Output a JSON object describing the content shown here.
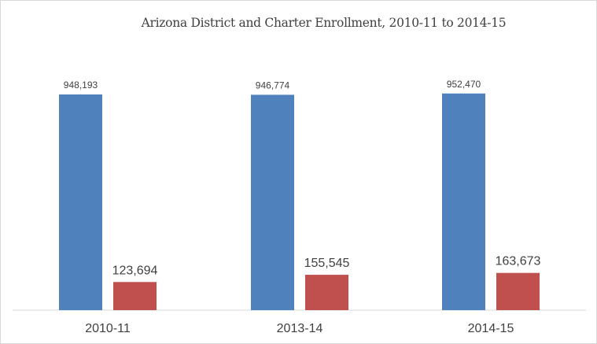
{
  "chart_data": {
    "type": "bar",
    "title": "Arizona District and Charter Enrollment, 2010-11 to 2014-15",
    "categories": [
      "2010-11",
      "2013-14",
      "2014-15"
    ],
    "series": [
      {
        "values": [
          948193,
          946774,
          952470
        ],
        "labels": [
          "948,193",
          "946,774",
          "952,470"
        ],
        "color": "#4f81bd"
      },
      {
        "values": [
          123694,
          155545,
          163673
        ],
        "labels": [
          "123,694",
          "155,545",
          "163,673"
        ],
        "color": "#c0504d"
      }
    ],
    "ylim": [
      0,
      950000
    ],
    "grid": false,
    "legend": "none",
    "xlabel": "",
    "ylabel": ""
  }
}
